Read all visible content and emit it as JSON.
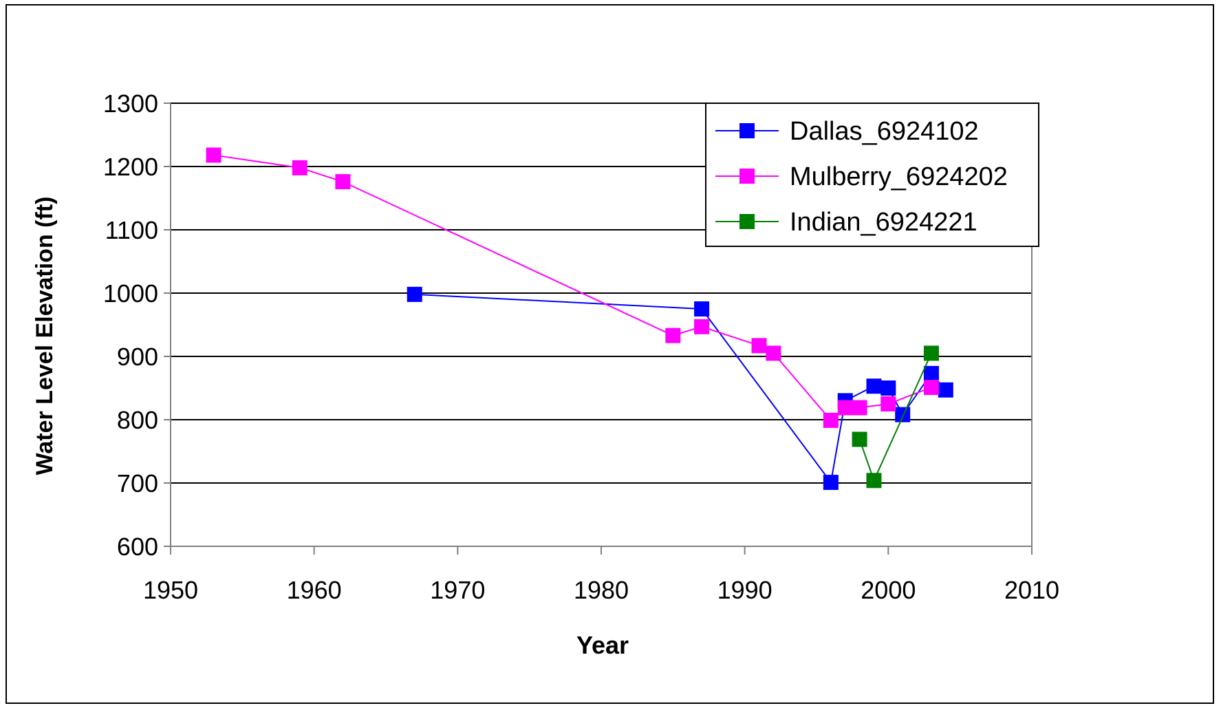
{
  "chart_data": {
    "type": "line",
    "title": "",
    "xlabel": "Year",
    "ylabel": "Water Level Elevation (ft)",
    "xlim": [
      1950,
      2010
    ],
    "ylim": [
      600,
      1300
    ],
    "xticks": [
      1950,
      1960,
      1970,
      1980,
      1990,
      2000,
      2010
    ],
    "yticks": [
      600,
      700,
      800,
      900,
      1000,
      1100,
      1200,
      1300
    ],
    "grid": "horizontal",
    "legend_position": "top-right",
    "series": [
      {
        "name": "Dallas_6924102",
        "color": "#0000ff",
        "x": [
          1967,
          1987,
          1996,
          1997,
          1999,
          2000,
          2001,
          2003,
          2004
        ],
        "y": [
          998,
          975,
          701,
          830,
          853,
          850,
          808,
          873,
          847
        ]
      },
      {
        "name": "Mulberry_6924202",
        "color": "#ff00ff",
        "x": [
          1953,
          1959,
          1962,
          1985,
          1987,
          1991,
          1992,
          1996,
          1997,
          1998,
          2000,
          2003
        ],
        "y": [
          1218,
          1198,
          1176,
          933,
          947,
          917,
          905,
          799,
          819,
          819,
          825,
          851
        ]
      },
      {
        "name": "Indian_6924221",
        "color": "#008000",
        "x": [
          1998,
          1999,
          2003
        ],
        "y": [
          769,
          704,
          905
        ]
      }
    ]
  }
}
